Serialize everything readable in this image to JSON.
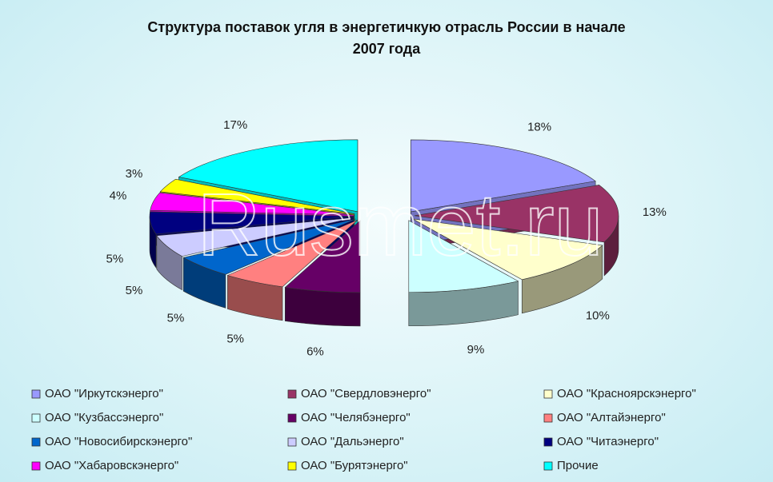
{
  "chart_data": {
    "type": "pie",
    "title": [
      "Структура поставок угля в энергетичкую отрасль России в начале",
      "2007 года"
    ],
    "watermark": "Rusmet.ru",
    "categories": [
      "ОАО \"Иркутскэнерго\"",
      "ОАО \"Свердловэнерго\"",
      "ОАО \"Красноярскэнерго\"",
      "ОАО \"Кузбассэнерго\"",
      "ОАО \"Челябэнерго\"",
      "ОАО \"Алтайэнерго\"",
      "ОАО \"Новосибирскэнерго\"",
      "ОАО \"Дальэнерго\"",
      "ОАО \"Читаэнерго\"",
      "ОАО \"Хабаровскэнерго\"",
      "ОАО \"Бурятэнерго\"",
      "Прочие"
    ],
    "values": [
      18,
      13,
      10,
      9,
      6,
      5,
      5,
      5,
      5,
      4,
      3,
      17
    ],
    "value_labels": [
      "18%",
      "13%",
      "10%",
      "9%",
      "6%",
      "5%",
      "5%",
      "5%",
      "5%",
      "4%",
      "3%",
      "17%"
    ],
    "colors": [
      "#9999ff",
      "#993366",
      "#ffffcc",
      "#ccffff",
      "#660066",
      "#ff8080",
      "#0066cc",
      "#ccccff",
      "#000080",
      "#ff00ff",
      "#ffff00",
      "#00ffff"
    ],
    "legend": "bottom"
  }
}
